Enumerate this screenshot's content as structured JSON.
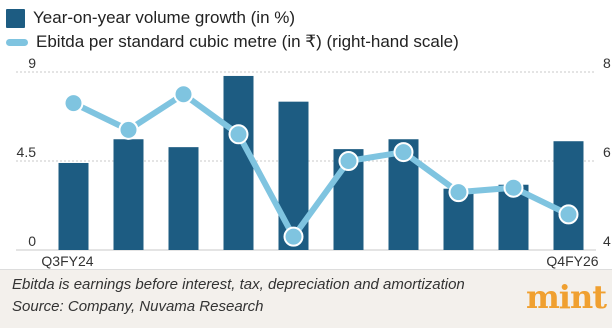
{
  "legend": {
    "bar_label": "Year-on-year volume growth (in %)",
    "line_label": "Ebitda per standard cubic metre (in ₹) (right-hand scale)"
  },
  "colors": {
    "bar": "#1d5c82",
    "line": "#7fc4e0",
    "grid": "#c8c8c8",
    "text": "#333333"
  },
  "chart_data": {
    "type": "bar",
    "x": [
      "Q3FY24",
      "",
      "",
      "",
      "",
      "",
      "",
      "",
      "",
      "Q4FY26"
    ],
    "x_tick_labels": {
      "first": "Q3FY24",
      "last": "Q4FY26"
    },
    "series": [
      {
        "name": "Year-on-year volume growth (in %)",
        "kind": "bar",
        "axis": "left",
        "values": [
          4.4,
          5.6,
          5.2,
          8.8,
          7.5,
          5.1,
          5.6,
          3.1,
          3.3,
          5.5
        ]
      },
      {
        "name": "Ebitda per standard cubic metre (in ₹) (right-hand scale)",
        "kind": "line",
        "axis": "right",
        "values": [
          7.3,
          6.7,
          7.5,
          6.6,
          4.3,
          6.0,
          6.2,
          5.3,
          5.4,
          4.8
        ]
      }
    ],
    "y_left": {
      "ylim": [
        0,
        9
      ],
      "ticks": [
        "0",
        "4.5",
        "9"
      ]
    },
    "y_right": {
      "ylim": [
        4,
        8
      ],
      "ticks": [
        "4",
        "6",
        "8"
      ]
    },
    "grid": true,
    "legend_position": "top-left"
  },
  "footer": {
    "note": "Ebitda is earnings before interest, tax, depreciation and amortization",
    "source": "Source: Company, Nuvama Research",
    "logo": "mint"
  }
}
